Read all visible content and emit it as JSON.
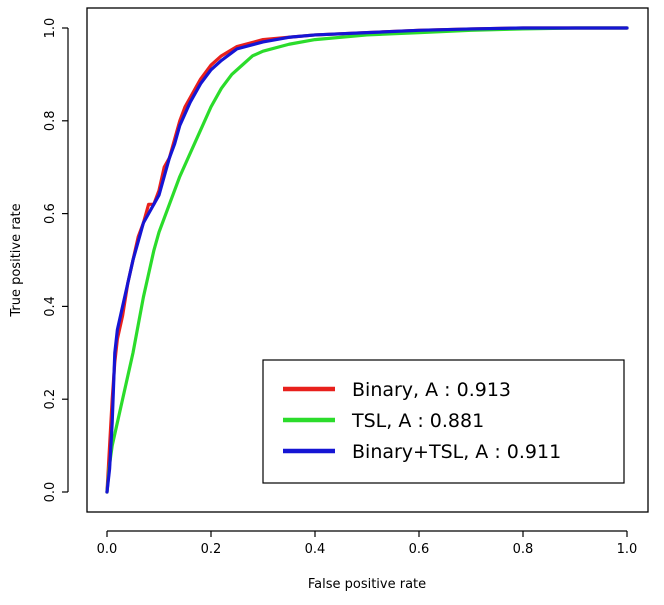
{
  "chart_data": {
    "type": "line",
    "title": "",
    "xlabel": "False positive rate",
    "ylabel": "True positive rate",
    "xlim": [
      0,
      1
    ],
    "ylim": [
      0,
      1
    ],
    "x_ticks": [
      "0.0",
      "0.2",
      "0.4",
      "0.6",
      "0.8",
      "1.0"
    ],
    "y_ticks": [
      "0.0",
      "0.2",
      "0.4",
      "0.6",
      "0.8",
      "1.0"
    ],
    "grid": false,
    "legend_position": "bottom-right",
    "series": [
      {
        "name": "Binary, A : 0.913",
        "color": "#e8201c",
        "x": [
          0,
          0.005,
          0.01,
          0.015,
          0.02,
          0.03,
          0.04,
          0.05,
          0.06,
          0.07,
          0.08,
          0.09,
          0.1,
          0.11,
          0.12,
          0.13,
          0.14,
          0.15,
          0.16,
          0.17,
          0.18,
          0.2,
          0.22,
          0.25,
          0.3,
          0.35,
          0.4,
          0.5,
          0.6,
          0.7,
          0.8,
          0.9,
          1.0
        ],
        "y": [
          0,
          0.1,
          0.2,
          0.28,
          0.33,
          0.38,
          0.45,
          0.5,
          0.55,
          0.58,
          0.62,
          0.62,
          0.65,
          0.7,
          0.72,
          0.76,
          0.8,
          0.83,
          0.85,
          0.87,
          0.89,
          0.92,
          0.94,
          0.96,
          0.975,
          0.98,
          0.985,
          0.99,
          0.995,
          0.998,
          1.0,
          1.0,
          1.0
        ]
      },
      {
        "name": "TSL, A : 0.881",
        "color": "#2bdc2b",
        "x": [
          0,
          0.005,
          0.01,
          0.02,
          0.03,
          0.04,
          0.05,
          0.06,
          0.07,
          0.08,
          0.09,
          0.1,
          0.12,
          0.14,
          0.16,
          0.18,
          0.2,
          0.22,
          0.24,
          0.26,
          0.28,
          0.3,
          0.35,
          0.4,
          0.5,
          0.6,
          0.7,
          0.8,
          0.9,
          1.0
        ],
        "y": [
          0,
          0.06,
          0.1,
          0.15,
          0.2,
          0.25,
          0.3,
          0.36,
          0.42,
          0.47,
          0.52,
          0.56,
          0.62,
          0.68,
          0.73,
          0.78,
          0.83,
          0.87,
          0.9,
          0.92,
          0.94,
          0.95,
          0.965,
          0.975,
          0.985,
          0.99,
          0.995,
          0.998,
          1.0,
          1.0
        ]
      },
      {
        "name": "Binary+TSL, A : 0.911",
        "color": "#1515d4",
        "x": [
          0,
          0.005,
          0.01,
          0.015,
          0.02,
          0.03,
          0.04,
          0.05,
          0.06,
          0.07,
          0.08,
          0.09,
          0.1,
          0.11,
          0.12,
          0.13,
          0.14,
          0.16,
          0.18,
          0.2,
          0.22,
          0.25,
          0.3,
          0.35,
          0.4,
          0.5,
          0.6,
          0.7,
          0.8,
          0.9,
          1.0
        ],
        "y": [
          0,
          0.05,
          0.15,
          0.3,
          0.35,
          0.4,
          0.45,
          0.5,
          0.54,
          0.58,
          0.6,
          0.62,
          0.64,
          0.68,
          0.72,
          0.75,
          0.79,
          0.84,
          0.88,
          0.91,
          0.93,
          0.955,
          0.97,
          0.98,
          0.985,
          0.99,
          0.995,
          0.998,
          1.0,
          1.0,
          1.0
        ]
      }
    ]
  }
}
